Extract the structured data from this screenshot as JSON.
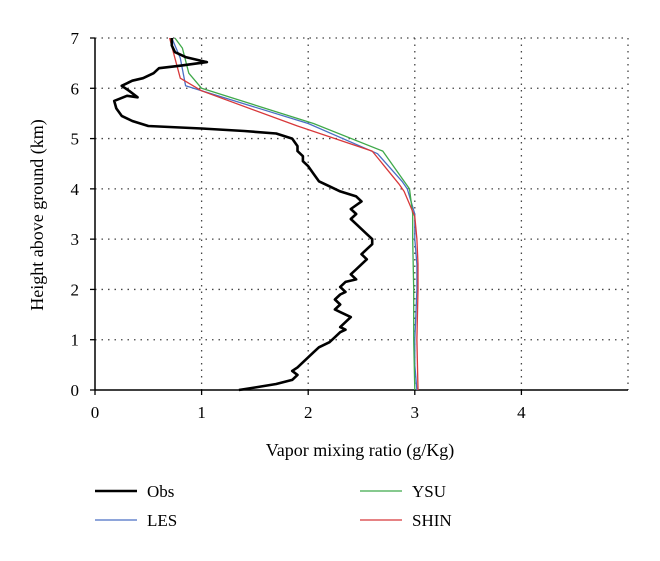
{
  "chart_data": {
    "type": "line",
    "title": "",
    "xlabel": "Vapor mixing ratio (g/Kg)",
    "ylabel": "Height above ground (km)",
    "xlim": [
      0,
      5
    ],
    "ylim": [
      0,
      7
    ],
    "xticks": [
      "0",
      "1",
      "2",
      "3",
      "4"
    ],
    "yticks": [
      "0",
      "1",
      "2",
      "3",
      "4",
      "5",
      "6",
      "7"
    ],
    "grid": "dotted",
    "legend_position": "bottom",
    "series": [
      {
        "name": "Obs",
        "color": "#000000",
        "points": [
          [
            1.35,
            0.0
          ],
          [
            1.5,
            0.05
          ],
          [
            1.7,
            0.12
          ],
          [
            1.85,
            0.2
          ],
          [
            1.9,
            0.3
          ],
          [
            1.85,
            0.38
          ],
          [
            1.9,
            0.45
          ],
          [
            1.95,
            0.55
          ],
          [
            2.0,
            0.65
          ],
          [
            2.05,
            0.75
          ],
          [
            2.1,
            0.85
          ],
          [
            2.2,
            0.95
          ],
          [
            2.25,
            1.05
          ],
          [
            2.3,
            1.15
          ],
          [
            2.35,
            1.2
          ],
          [
            2.3,
            1.25
          ],
          [
            2.35,
            1.35
          ],
          [
            2.4,
            1.45
          ],
          [
            2.35,
            1.5
          ],
          [
            2.3,
            1.55
          ],
          [
            2.25,
            1.6
          ],
          [
            2.3,
            1.7
          ],
          [
            2.25,
            1.8
          ],
          [
            2.3,
            1.9
          ],
          [
            2.35,
            1.95
          ],
          [
            2.3,
            2.05
          ],
          [
            2.35,
            2.15
          ],
          [
            2.45,
            2.2
          ],
          [
            2.4,
            2.3
          ],
          [
            2.45,
            2.4
          ],
          [
            2.5,
            2.5
          ],
          [
            2.55,
            2.6
          ],
          [
            2.5,
            2.7
          ],
          [
            2.55,
            2.8
          ],
          [
            2.6,
            2.9
          ],
          [
            2.6,
            3.0
          ],
          [
            2.55,
            3.1
          ],
          [
            2.5,
            3.2
          ],
          [
            2.45,
            3.3
          ],
          [
            2.4,
            3.4
          ],
          [
            2.45,
            3.5
          ],
          [
            2.4,
            3.6
          ],
          [
            2.5,
            3.75
          ],
          [
            2.45,
            3.85
          ],
          [
            2.3,
            3.95
          ],
          [
            2.2,
            4.05
          ],
          [
            2.1,
            4.15
          ],
          [
            2.05,
            4.3
          ],
          [
            2.0,
            4.45
          ],
          [
            1.95,
            4.55
          ],
          [
            1.95,
            4.65
          ],
          [
            1.9,
            4.75
          ],
          [
            1.9,
            4.85
          ],
          [
            1.85,
            5.0
          ],
          [
            1.7,
            5.1
          ],
          [
            1.4,
            5.15
          ],
          [
            1.0,
            5.2
          ],
          [
            0.5,
            5.25
          ],
          [
            0.35,
            5.35
          ],
          [
            0.25,
            5.45
          ],
          [
            0.2,
            5.6
          ],
          [
            0.18,
            5.75
          ],
          [
            0.3,
            5.85
          ],
          [
            0.4,
            5.82
          ],
          [
            0.32,
            5.95
          ],
          [
            0.25,
            6.05
          ],
          [
            0.35,
            6.15
          ],
          [
            0.45,
            6.2
          ],
          [
            0.55,
            6.3
          ],
          [
            0.6,
            6.4
          ],
          [
            0.8,
            6.45
          ],
          [
            1.05,
            6.52
          ],
          [
            0.85,
            6.62
          ],
          [
            0.75,
            6.72
          ],
          [
            0.72,
            6.85
          ],
          [
            0.72,
            7.0
          ]
        ]
      },
      {
        "name": "LES",
        "color": "#4a6fc4",
        "points": [
          [
            3.02,
            0.0
          ],
          [
            3.0,
            0.5
          ],
          [
            3.0,
            1.0
          ],
          [
            3.01,
            1.5
          ],
          [
            3.02,
            2.0
          ],
          [
            3.02,
            2.5
          ],
          [
            3.0,
            3.0
          ],
          [
            3.0,
            3.5
          ],
          [
            2.93,
            4.0
          ],
          [
            2.88,
            4.15
          ],
          [
            2.65,
            4.7
          ],
          [
            2.0,
            5.3
          ],
          [
            1.0,
            5.95
          ],
          [
            0.85,
            6.05
          ],
          [
            0.8,
            6.6
          ],
          [
            0.72,
            7.0
          ]
        ]
      },
      {
        "name": "YSU",
        "color": "#3fa94a",
        "points": [
          [
            3.0,
            0.0
          ],
          [
            2.99,
            1.0
          ],
          [
            2.99,
            2.0
          ],
          [
            2.98,
            3.0
          ],
          [
            2.98,
            3.5
          ],
          [
            2.95,
            4.0
          ],
          [
            2.9,
            4.15
          ],
          [
            2.7,
            4.75
          ],
          [
            2.05,
            5.3
          ],
          [
            1.0,
            6.0
          ],
          [
            0.88,
            6.3
          ],
          [
            0.82,
            6.8
          ],
          [
            0.75,
            7.0
          ]
        ]
      },
      {
        "name": "SHIN",
        "color": "#d8383a",
        "points": [
          [
            3.03,
            0.0
          ],
          [
            3.02,
            1.0
          ],
          [
            3.03,
            2.0
          ],
          [
            3.03,
            2.5
          ],
          [
            3.02,
            3.0
          ],
          [
            3.0,
            3.45
          ],
          [
            2.9,
            3.95
          ],
          [
            2.85,
            4.1
          ],
          [
            2.6,
            4.75
          ],
          [
            1.9,
            5.25
          ],
          [
            1.0,
            5.95
          ],
          [
            0.8,
            6.2
          ],
          [
            0.75,
            6.6
          ],
          [
            0.7,
            7.0
          ]
        ]
      }
    ]
  }
}
